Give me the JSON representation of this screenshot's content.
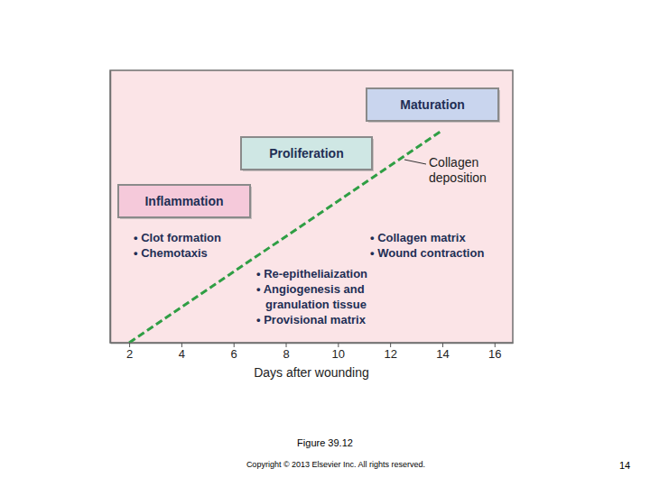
{
  "chart_data": {
    "type": "line",
    "x_label": "Days after wounding",
    "x": [
      2,
      14
    ],
    "xlim": [
      1.27,
      16.7
    ],
    "xticks": [
      2,
      4,
      6,
      8,
      10,
      12,
      14,
      16
    ],
    "ylim": [
      0,
      100
    ],
    "yticks": [],
    "tick_labels": "x",
    "grid": false,
    "series": [
      {
        "name": "Collagen\ndeposition",
        "color": "#2f9e44",
        "line_style": "dashed",
        "values": [
          0,
          78
        ]
      }
    ],
    "phases": [
      {
        "title": "Inflammation",
        "color": "#f5c9da",
        "items": [
          [
            "• Clot formation"
          ],
          [
            "• Chemotaxis"
          ]
        ]
      },
      {
        "title": "Proliferation",
        "color": "#cfe7e4",
        "items": [
          [
            "• Re-epitheliaization"
          ],
          [
            "• Angiogenesis and",
            "granulation tissue"
          ],
          [
            "• Provisional matrix"
          ]
        ]
      },
      {
        "title": "Maturation",
        "color": "#c9d5ee",
        "items": [
          [
            "• Collagen matrix"
          ],
          [
            "• Wound contraction"
          ]
        ]
      }
    ],
    "caption": "Figure 39.12",
    "copyright": "Copyright © 2013 Elsevier Inc. All rights reserved.",
    "page_number": "14"
  }
}
